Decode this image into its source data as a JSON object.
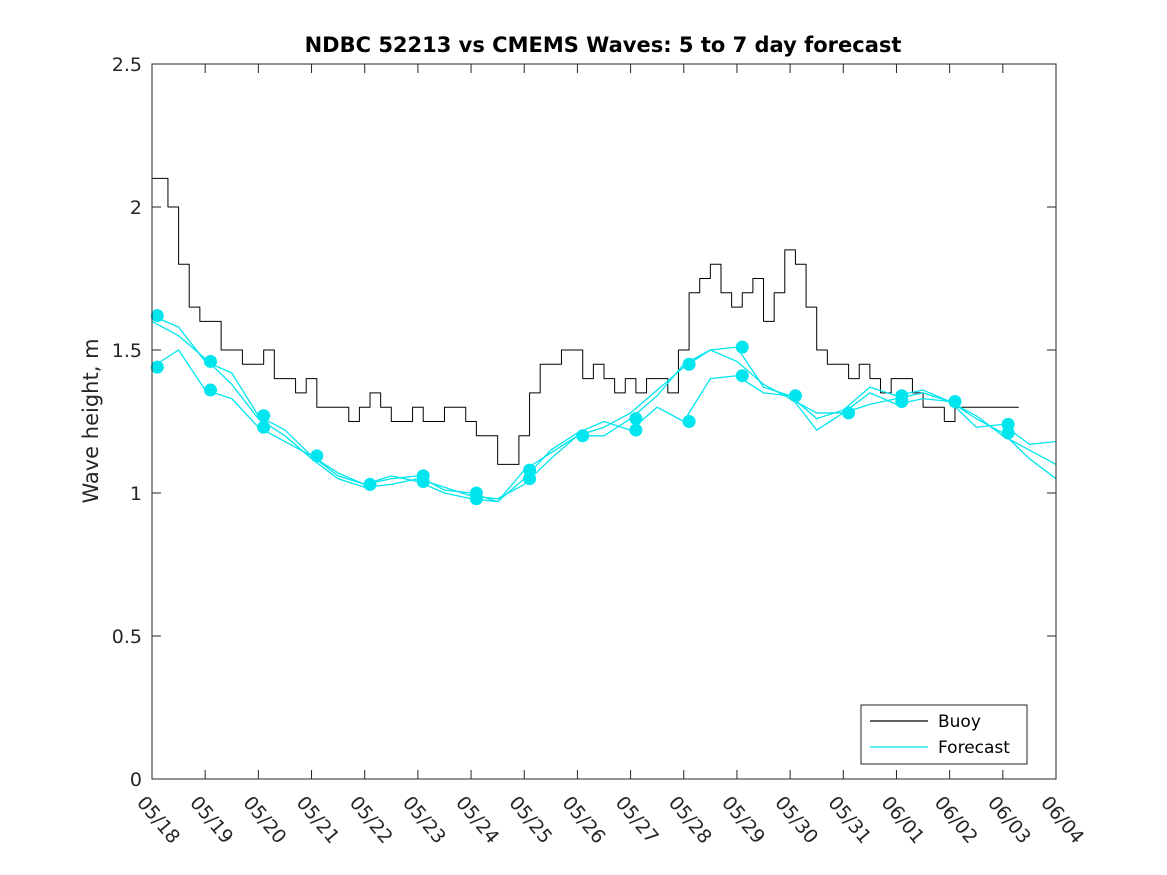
{
  "chart_data": {
    "type": "line",
    "title": "NDBC 52213 vs CMEMS Waves: 5 to 7 day forecast",
    "xlabel": "",
    "ylabel": "Wave height, m",
    "x_ticks": [
      "05/18",
      "05/19",
      "05/20",
      "05/21",
      "05/22",
      "05/23",
      "05/24",
      "05/25",
      "05/26",
      "05/27",
      "05/28",
      "05/29",
      "05/30",
      "05/31",
      "06/01",
      "06/02",
      "06/03",
      "06/04"
    ],
    "xlim_days": [
      0,
      17
    ],
    "ylim": [
      0,
      2.5
    ],
    "y_ticks": [
      0,
      0.5,
      1,
      1.5,
      2,
      2.5
    ],
    "y_tick_labels": [
      "0",
      "0.5",
      "1",
      "1.5",
      "2",
      "2.5"
    ],
    "grid": false,
    "legend": {
      "placement": "bottom-right",
      "entries": [
        "Buoy",
        "Forecast"
      ]
    },
    "colors": {
      "buoy": "#000000",
      "forecast": "#00e5ee"
    },
    "series": [
      {
        "name": "Buoy",
        "x": [
          0,
          0.3,
          0.5,
          0.7,
          0.9,
          1.1,
          1.3,
          1.5,
          1.7,
          1.9,
          2.1,
          2.3,
          2.5,
          2.7,
          2.9,
          3.1,
          3.3,
          3.5,
          3.7,
          3.9,
          4.1,
          4.3,
          4.5,
          4.7,
          4.9,
          5.1,
          5.3,
          5.5,
          5.7,
          5.9,
          6.1,
          6.3,
          6.5,
          6.7,
          6.9,
          7.1,
          7.3,
          7.5,
          7.7,
          7.9,
          8.1,
          8.3,
          8.5,
          8.7,
          8.9,
          9.1,
          9.3,
          9.5,
          9.7,
          9.9,
          10.1,
          10.3,
          10.5,
          10.7,
          10.9,
          11.1,
          11.3,
          11.5,
          11.7,
          11.9,
          12.1,
          12.3,
          12.5,
          12.7,
          12.9,
          13.1,
          13.3,
          13.5,
          13.7,
          13.9,
          14.1,
          14.3,
          14.5,
          14.7,
          14.9,
          15.1,
          15.3,
          15.5,
          15.7,
          15.9,
          16.1,
          16.3
        ],
        "y": [
          2.1,
          2.0,
          1.8,
          1.65,
          1.6,
          1.6,
          1.5,
          1.5,
          1.45,
          1.45,
          1.5,
          1.4,
          1.4,
          1.35,
          1.4,
          1.3,
          1.3,
          1.3,
          1.25,
          1.3,
          1.35,
          1.3,
          1.25,
          1.25,
          1.3,
          1.25,
          1.25,
          1.3,
          1.3,
          1.25,
          1.2,
          1.2,
          1.1,
          1.1,
          1.2,
          1.35,
          1.45,
          1.45,
          1.5,
          1.5,
          1.4,
          1.45,
          1.4,
          1.35,
          1.4,
          1.35,
          1.4,
          1.4,
          1.35,
          1.5,
          1.7,
          1.75,
          1.8,
          1.7,
          1.65,
          1.7,
          1.75,
          1.6,
          1.7,
          1.85,
          1.8,
          1.65,
          1.5,
          1.45,
          1.45,
          1.4,
          1.45,
          1.4,
          1.35,
          1.4,
          1.4,
          1.35,
          1.3,
          1.3,
          1.25,
          1.3,
          1.3,
          1.3,
          1.3,
          1.3,
          1.3,
          1.3
        ]
      },
      {
        "name": "Forecast",
        "x": [
          0,
          0.5,
          1,
          1.5,
          2,
          2.5,
          3,
          3.5,
          4,
          4.5,
          5,
          5.5,
          6,
          6.5,
          7,
          7.5,
          8,
          8.5,
          9,
          9.5,
          10,
          10.5,
          11,
          11.5,
          12,
          12.5,
          13,
          13.5,
          14,
          14.5,
          15,
          15.5,
          16,
          16.5,
          17
        ],
        "y": [
          1.6,
          1.55,
          1.47,
          1.38,
          1.26,
          1.2,
          1.12,
          1.05,
          1.02,
          1.03,
          1.05,
          1.02,
          0.99,
          0.98,
          1.03,
          1.12,
          1.2,
          1.23,
          1.28,
          1.36,
          1.44,
          1.5,
          1.46,
          1.38,
          1.33,
          1.28,
          1.28,
          1.31,
          1.33,
          1.35,
          1.32,
          1.27,
          1.2,
          1.15,
          1.1
        ]
      },
      {
        "name": "",
        "x": [
          0,
          0.5,
          1,
          1.5,
          2,
          2.5,
          3,
          3.5,
          4,
          4.5,
          5,
          5.5,
          6,
          6.5,
          7,
          7.5,
          8,
          8.5,
          9,
          9.5,
          10,
          10.5,
          11,
          11.5,
          12,
          12.5,
          13,
          13.5,
          14,
          14.5,
          15,
          15.5,
          16,
          16.5,
          17
        ],
        "y": [
          1.44,
          1.5,
          1.36,
          1.33,
          1.23,
          1.18,
          1.13,
          1.06,
          1.03,
          1.06,
          1.04,
          1.0,
          0.98,
          0.97,
          1.05,
          1.15,
          1.21,
          1.25,
          1.22,
          1.3,
          1.25,
          1.4,
          1.41,
          1.35,
          1.34,
          1.22,
          1.28,
          1.35,
          1.31,
          1.33,
          1.32,
          1.26,
          1.21,
          1.12,
          1.05
        ]
      },
      {
        "name": "",
        "x": [
          0,
          0.5,
          1,
          1.5,
          2,
          2.5,
          3,
          3.5,
          4,
          4.5,
          5,
          5.5,
          6,
          6.5,
          7,
          7.5,
          8,
          8.5,
          9,
          9.5,
          10,
          10.5,
          11,
          11.5,
          12,
          12.5,
          13,
          13.5,
          14,
          14.5,
          15,
          15.5,
          16,
          16.5,
          17
        ],
        "y": [
          1.62,
          1.58,
          1.46,
          1.42,
          1.27,
          1.22,
          1.13,
          1.07,
          1.03,
          1.05,
          1.06,
          1.01,
          1.0,
          0.97,
          1.08,
          1.14,
          1.2,
          1.2,
          1.26,
          1.34,
          1.45,
          1.5,
          1.51,
          1.37,
          1.34,
          1.26,
          1.29,
          1.37,
          1.34,
          1.36,
          1.32,
          1.23,
          1.24,
          1.17,
          1.18
        ]
      }
    ],
    "markers": {
      "series": "Forecast",
      "x": [
        0.1,
        0.1,
        1.1,
        1.1,
        2.1,
        2.1,
        3.1,
        4.1,
        5.1,
        5.1,
        6.1,
        6.1,
        7.1,
        7.1,
        8.1,
        9.1,
        9.1,
        10.1,
        10.1,
        11.1,
        11.1,
        12.1,
        13.1,
        14.1,
        14.1,
        15.1,
        16.1,
        16.1
      ],
      "y": [
        1.62,
        1.44,
        1.46,
        1.36,
        1.27,
        1.23,
        1.13,
        1.03,
        1.06,
        1.04,
        1.0,
        0.98,
        1.08,
        1.05,
        1.2,
        1.26,
        1.22,
        1.45,
        1.25,
        1.51,
        1.41,
        1.34,
        1.28,
        1.34,
        1.32,
        1.32,
        1.24,
        1.21
      ]
    }
  }
}
